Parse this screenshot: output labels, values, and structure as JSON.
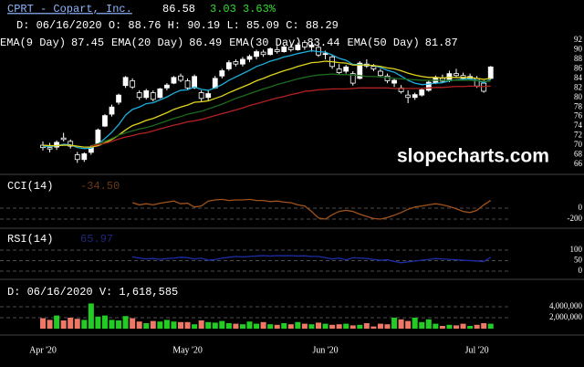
{
  "chart_data": [
    {
      "type": "candlestick",
      "title": "CPRT - Copart, Inc.",
      "price": "86.58",
      "change": "3.03 3.63%",
      "ohlc_text": "D: 06/16/2020 O: 88.76 H: 90.19 L: 85.09 C: 88.29",
      "watermark": "slopecharts.com",
      "categories": [
        "Apr '20",
        null,
        null,
        null,
        null,
        null,
        null,
        null,
        null,
        null,
        null,
        null,
        null,
        null,
        null,
        null,
        null,
        null,
        null,
        null,
        null,
        "May '20",
        null,
        null,
        null,
        null,
        null,
        null,
        null,
        null,
        null,
        null,
        null,
        null,
        null,
        null,
        null,
        null,
        null,
        null,
        null,
        "Jun '20",
        null,
        null,
        null,
        null,
        null,
        null,
        null,
        null,
        null,
        null,
        null,
        null,
        null,
        null,
        null,
        null,
        null,
        null,
        null,
        null,
        null,
        "Jul '20",
        null,
        null
      ],
      "open": [
        70.0,
        69.5,
        69.6,
        71.5,
        70.8,
        68.0,
        67.0,
        68.5,
        70.0,
        74.0,
        76.5,
        79.0,
        82.5,
        83.5,
        81.0,
        80.0,
        81.0,
        80.0,
        82.0,
        83.0,
        84.5,
        83.5,
        82.0,
        81.0,
        80.0,
        82.0,
        84.5,
        86.0,
        87.5,
        87.0,
        88.0,
        88.6,
        89.5,
        89.0,
        90.0,
        89.6,
        90.5,
        90.0,
        91.5,
        90.6,
        90.5,
        89.0,
        88.5,
        86.0,
        85.5,
        85.0,
        84.0,
        87.0,
        86.5,
        85.5,
        84.5,
        83.0,
        82.0,
        80.5,
        80.0,
        80.5,
        81.5,
        83.0,
        84.0,
        83.5,
        85.0,
        84.6,
        84.0,
        84.0,
        83.0,
        84.0
      ],
      "high": [
        70.8,
        70.5,
        71.0,
        72.6,
        71.2,
        68.6,
        68.5,
        70.0,
        73.5,
        76.5,
        78.5,
        80.8,
        84.5,
        84.0,
        81.5,
        81.8,
        81.5,
        82.0,
        83.0,
        84.5,
        85.0,
        84.0,
        84.8,
        81.5,
        81.5,
        84.5,
        86.0,
        87.8,
        88.0,
        88.5,
        89.0,
        90.0,
        90.0,
        90.5,
        90.8,
        91.0,
        91.2,
        91.5,
        92.0,
        91.5,
        91.0,
        89.8,
        89.0,
        87.0,
        86.8,
        85.5,
        87.6,
        88.0,
        87.0,
        86.0,
        85.0,
        84.0,
        82.6,
        81.5,
        81.0,
        82.0,
        83.5,
        84.6,
        84.8,
        85.6,
        86.0,
        85.2,
        85.0,
        84.5,
        83.6,
        86.6
      ],
      "low": [
        68.9,
        68.5,
        69.0,
        70.8,
        69.3,
        66.3,
        66.5,
        68.0,
        69.8,
        73.8,
        76.0,
        78.5,
        82.0,
        81.8,
        79.5,
        79.6,
        79.2,
        79.8,
        81.5,
        82.8,
        83.2,
        81.5,
        81.8,
        79.0,
        79.2,
        81.8,
        84.0,
        85.6,
        86.5,
        86.5,
        87.4,
        88.0,
        88.5,
        88.8,
        89.2,
        89.4,
        89.6,
        89.8,
        90.0,
        89.6,
        88.5,
        88.0,
        86.0,
        84.8,
        85.0,
        82.5,
        83.8,
        86.2,
        85.5,
        84.2,
        83.0,
        82.2,
        80.8,
        78.8,
        79.5,
        80.2,
        81.2,
        82.8,
        83.0,
        83.2,
        84.2,
        83.5,
        83.6,
        82.0,
        81.0,
        83.8
      ],
      "close": [
        69.5,
        69.2,
        70.6,
        71.2,
        69.8,
        67.0,
        68.2,
        69.6,
        73.2,
        76.2,
        78.0,
        80.5,
        84.2,
        82.2,
        80.0,
        81.4,
        79.6,
        81.8,
        82.6,
        84.2,
        83.6,
        82.0,
        84.4,
        79.8,
        80.8,
        84.0,
        85.6,
        87.3,
        87.0,
        88.0,
        88.6,
        89.6,
        89.0,
        90.2,
        89.6,
        90.6,
        90.0,
        91.0,
        90.6,
        91.0,
        88.9,
        89.2,
        86.5,
        85.2,
        86.4,
        83.0,
        87.2,
        86.6,
        86.0,
        84.6,
        83.5,
        83.6,
        81.2,
        80.0,
        80.6,
        81.6,
        83.2,
        84.2,
        83.4,
        85.0,
        84.6,
        84.0,
        84.4,
        82.4,
        81.3,
        86.4
      ],
      "up_color": "#ffffff",
      "down_color": "#000000",
      "wick_color": "#ffffff",
      "series": [
        {
          "name": "EMA(9 Day)",
          "legend_value": "87.45",
          "color": "#1eaee0",
          "values": [
            69.8,
            69.7,
            69.9,
            70.2,
            70.1,
            69.5,
            69.3,
            69.4,
            70.2,
            71.4,
            72.7,
            74.3,
            76.3,
            77.5,
            78.0,
            78.7,
            78.9,
            79.5,
            80.1,
            80.9,
            81.5,
            81.6,
            82.2,
            81.7,
            81.5,
            82.0,
            82.7,
            83.6,
            84.3,
            85.0,
            85.7,
            86.5,
            87.0,
            87.6,
            88.0,
            88.5,
            88.8,
            89.2,
            89.5,
            89.8,
            89.6,
            89.5,
            88.9,
            88.2,
            87.8,
            86.9,
            86.9,
            86.8,
            86.7,
            86.3,
            85.7,
            85.3,
            84.5,
            83.6,
            83.0,
            82.7,
            82.8,
            83.0,
            83.1,
            83.5,
            83.7,
            83.8,
            83.9,
            83.6,
            83.1,
            83.8
          ]
        },
        {
          "name": "EMA(20 Day)",
          "legend_value": "86.49",
          "color": "#e0d41c",
          "values": [
            70.0,
            69.9,
            69.9,
            70.0,
            70.0,
            69.8,
            69.6,
            69.6,
            69.9,
            70.5,
            71.2,
            72.1,
            73.2,
            74.1,
            74.6,
            75.2,
            75.6,
            76.2,
            76.8,
            77.5,
            78.0,
            78.4,
            79.0,
            79.1,
            79.3,
            79.8,
            80.3,
            81.0,
            81.6,
            82.2,
            82.8,
            83.5,
            84.0,
            84.6,
            85.1,
            85.6,
            86.0,
            86.5,
            86.9,
            87.3,
            87.4,
            87.6,
            87.5,
            87.3,
            87.2,
            86.8,
            86.8,
            86.8,
            86.7,
            86.5,
            86.2,
            86.0,
            85.6,
            85.1,
            84.7,
            84.4,
            84.2,
            84.2,
            84.1,
            84.2,
            84.2,
            84.2,
            84.2,
            84.0,
            83.8,
            84.0
          ]
        },
        {
          "name": "EMA(30 Day)",
          "legend_value": "83.44",
          "color": "#1d6b1d",
          "values": [
            null,
            null,
            null,
            null,
            null,
            null,
            null,
            69.9,
            70.3,
            70.8,
            71.4,
            72.1,
            72.6,
            73.0,
            73.4,
            73.7,
            74.1,
            74.6,
            75.1,
            75.6,
            76.0,
            76.5,
            76.8,
            77.1,
            77.6,
            78.1,
            78.6,
            79.2,
            79.8,
            80.3,
            80.8,
            81.3,
            81.8,
            82.2,
            82.7,
            83.1,
            83.5,
            83.9,
            84.2,
            84.5,
            84.7,
            84.8,
            84.9,
            84.8,
            84.8,
            84.7,
            84.6,
            84.4,
            84.4,
            84.3,
            84.2,
            84.0,
            83.9,
            83.8,
            83.7,
            83.6,
            83.6,
            83.6,
            83.6,
            83.6,
            83.6,
            83.6,
            83.6,
            83.5,
            83.4,
            83.4
          ]
        },
        {
          "name": "EMA(50 Day)",
          "legend_value": "81.87",
          "color": "#b32222",
          "values": [
            null,
            null,
            null,
            null,
            null,
            null,
            null,
            69.8,
            70.1,
            70.4,
            70.8,
            71.3,
            71.7,
            72.0,
            72.4,
            72.6,
            73.0,
            73.4,
            73.8,
            74.2,
            74.5,
            74.9,
            75.1,
            75.4,
            75.8,
            76.2,
            76.6,
            77.0,
            77.4,
            77.8,
            78.3,
            78.7,
            79.1,
            79.5,
            79.9,
            80.2,
            80.6,
            80.9,
            81.3,
            81.4,
            81.6,
            81.7,
            81.8,
            81.8,
            81.8,
            81.9,
            82.0,
            82.0,
            82.0,
            82.0,
            82.0,
            81.9,
            81.9,
            81.9,
            81.9,
            81.9,
            82.0,
            82.1,
            82.1,
            82.2,
            82.3,
            82.3,
            82.4,
            82.3,
            82.3,
            82.4
          ]
        }
      ],
      "ylim": [
        64.5,
        93.5
      ],
      "yticks": [
        66,
        68,
        70,
        72,
        74,
        76,
        78,
        80,
        82,
        84,
        86,
        88,
        90,
        92
      ]
    },
    {
      "type": "line",
      "title": "CCI(14)",
      "current": "-34.50",
      "color": "#a0521a",
      "values": [
        null,
        null,
        null,
        null,
        null,
        null,
        null,
        null,
        null,
        null,
        null,
        null,
        null,
        100,
        60,
        80,
        60,
        90,
        110,
        130,
        80,
        90,
        20,
        40,
        130,
        150,
        160,
        140,
        150,
        150,
        160,
        140,
        140,
        120,
        130,
        110,
        100,
        60,
        40,
        -60,
        -180,
        -200,
        -120,
        -60,
        -40,
        -60,
        -110,
        -150,
        -190,
        -200,
        -170,
        -130,
        -80,
        -20,
        20,
        40,
        60,
        80,
        60,
        30,
        -10,
        -60,
        -80,
        -40,
        60,
        140
      ],
      "ylim": [
        -350,
        500
      ],
      "yticks": [
        0,
        -200
      ]
    },
    {
      "type": "line",
      "title": "RSI(14)",
      "current": "65.97",
      "color": "#1c2ea8",
      "values": [
        null,
        null,
        null,
        null,
        null,
        null,
        null,
        null,
        null,
        null,
        null,
        null,
        null,
        68,
        62,
        58,
        60,
        56,
        60,
        62,
        66,
        64,
        58,
        62,
        52,
        55,
        62,
        66,
        70,
        68,
        70,
        72,
        74,
        72,
        74,
        73,
        74,
        72,
        73,
        70,
        70,
        64,
        58,
        62,
        54,
        64,
        62,
        60,
        56,
        52,
        54,
        46,
        40,
        44,
        48,
        52,
        56,
        60,
        58,
        56,
        54,
        52,
        50,
        48,
        46,
        66
      ],
      "ylim": [
        0,
        100
      ],
      "yticks": [
        100,
        50,
        0
      ]
    },
    {
      "type": "bar",
      "title": "D: 06/16/2020 V: 1,618,585",
      "up_color": "#22cc22",
      "down_color": "#ee7766",
      "values": [
        1900000,
        1600000,
        2400000,
        1500000,
        2000000,
        1800000,
        1600000,
        4600000,
        2200000,
        2400000,
        1600000,
        1500000,
        2300000,
        1900000,
        1300000,
        1000000,
        1400000,
        1300000,
        1600000,
        1300000,
        1200000,
        1200000,
        800000,
        1500000,
        1200000,
        1100000,
        1400000,
        1000000,
        900000,
        800000,
        1300000,
        900000,
        1200000,
        800000,
        700000,
        1000000,
        800000,
        1200000,
        900000,
        800000,
        1100000,
        900000,
        700000,
        800000,
        900000,
        600000,
        700000,
        1000000,
        400000,
        900000,
        800000,
        2000000,
        1700000,
        1400000,
        2000000,
        1200000,
        1700000,
        900000,
        500000,
        700000,
        600000,
        900000,
        500000,
        700000,
        1000000,
        900000
      ],
      "ylim": [
        0,
        7000000
      ],
      "yticks": [
        {
          "value": 4000000,
          "label": "4,000,000"
        },
        {
          "value": 2000000,
          "label": "2,000,000"
        }
      ]
    }
  ]
}
